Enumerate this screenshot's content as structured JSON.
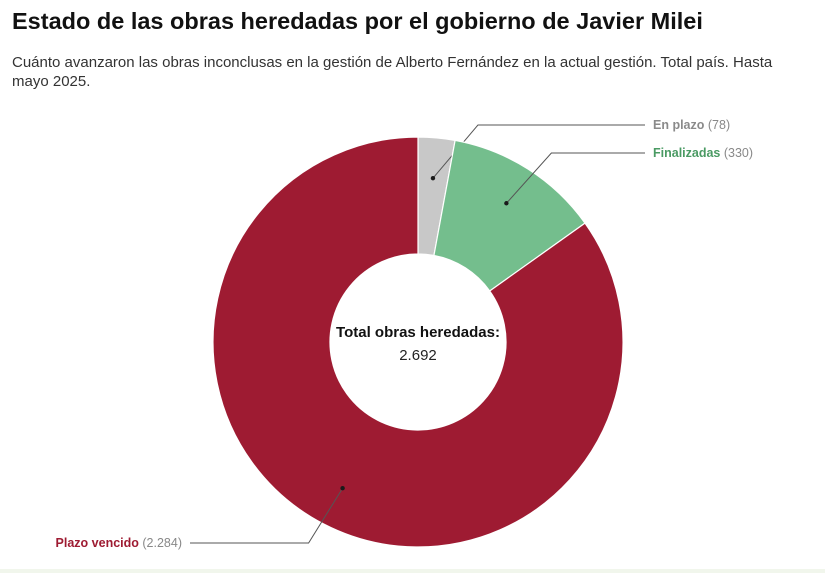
{
  "header": {
    "title": "Estado de las obras heredadas por el gobierno de Javier Milei",
    "subtitle": "Cuánto avanzaron las obras inconclusas en la gestión de Alberto Fernández en la actual gestión. Total país. Hasta mayo 2025."
  },
  "chart_data": {
    "type": "pie",
    "style": "donut",
    "center_label": "Total obras heredadas:",
    "center_value": "2.692",
    "series": [
      {
        "name": "En plazo",
        "value": 78,
        "value_label": "(78)",
        "color": "#c8c8c8",
        "name_color": "#8a8a8a",
        "label_side": "right"
      },
      {
        "name": "Finalizadas",
        "value": 330,
        "value_label": "(330)",
        "color": "#74be8d",
        "name_color": "#4a9a63",
        "label_side": "right"
      },
      {
        "name": "Plazo vencido",
        "value": 2284,
        "value_label": "(2.284)",
        "color": "#9e1b32",
        "name_color": "#9e1b32",
        "label_side": "left"
      }
    ]
  }
}
